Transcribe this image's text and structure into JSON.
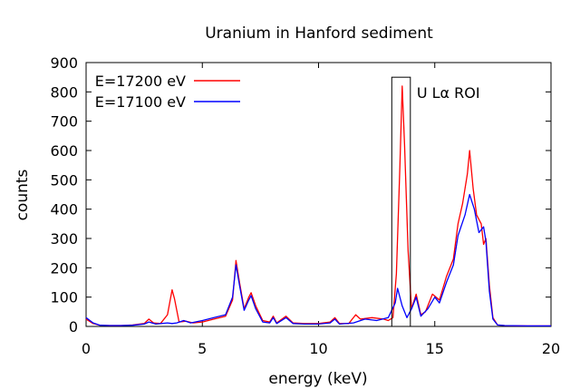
{
  "chart_data": {
    "type": "line",
    "title": "Uranium in Hanford sediment",
    "xlabel": "energy (keV)",
    "ylabel": "counts",
    "xlim": [
      0,
      20
    ],
    "ylim": [
      0,
      900
    ],
    "x_ticks": [
      0,
      5,
      10,
      15,
      20
    ],
    "y_ticks": [
      0,
      100,
      200,
      300,
      400,
      500,
      600,
      700,
      800,
      900
    ],
    "grid": false,
    "legend_position": "top-left",
    "series": [
      {
        "name": "E=17200 eV",
        "color": "#ff0000",
        "points": [
          [
            0.0,
            25
          ],
          [
            0.3,
            10
          ],
          [
            0.6,
            4
          ],
          [
            1.0,
            3
          ],
          [
            1.5,
            3
          ],
          [
            2.0,
            5
          ],
          [
            2.5,
            10
          ],
          [
            2.7,
            25
          ],
          [
            2.9,
            12
          ],
          [
            3.2,
            10
          ],
          [
            3.5,
            40
          ],
          [
            3.7,
            125
          ],
          [
            3.8,
            95
          ],
          [
            4.0,
            15
          ],
          [
            4.3,
            18
          ],
          [
            4.6,
            12
          ],
          [
            5.0,
            15
          ],
          [
            5.5,
            25
          ],
          [
            6.0,
            35
          ],
          [
            6.3,
            90
          ],
          [
            6.45,
            225
          ],
          [
            6.6,
            150
          ],
          [
            6.8,
            60
          ],
          [
            7.0,
            100
          ],
          [
            7.1,
            115
          ],
          [
            7.3,
            70
          ],
          [
            7.6,
            20
          ],
          [
            7.9,
            15
          ],
          [
            8.05,
            35
          ],
          [
            8.2,
            12
          ],
          [
            8.6,
            35
          ],
          [
            8.9,
            12
          ],
          [
            9.4,
            10
          ],
          [
            10.0,
            10
          ],
          [
            10.5,
            15
          ],
          [
            10.7,
            30
          ],
          [
            10.9,
            10
          ],
          [
            11.3,
            10
          ],
          [
            11.6,
            40
          ],
          [
            11.8,
            25
          ],
          [
            12.3,
            30
          ],
          [
            12.8,
            25
          ],
          [
            13.0,
            20
          ],
          [
            13.2,
            30
          ],
          [
            13.35,
            180
          ],
          [
            13.5,
            550
          ],
          [
            13.6,
            820
          ],
          [
            13.7,
            620
          ],
          [
            13.85,
            260
          ],
          [
            14.0,
            60
          ],
          [
            14.2,
            110
          ],
          [
            14.4,
            40
          ],
          [
            14.6,
            50
          ],
          [
            14.9,
            110
          ],
          [
            15.2,
            90
          ],
          [
            15.5,
            170
          ],
          [
            15.8,
            230
          ],
          [
            16.0,
            350
          ],
          [
            16.2,
            420
          ],
          [
            16.4,
            520
          ],
          [
            16.5,
            600
          ],
          [
            16.65,
            470
          ],
          [
            16.8,
            380
          ],
          [
            17.0,
            350
          ],
          [
            17.1,
            280
          ],
          [
            17.2,
            300
          ],
          [
            17.35,
            140
          ],
          [
            17.5,
            30
          ],
          [
            17.7,
            5
          ],
          [
            18.0,
            3
          ],
          [
            19.0,
            2
          ],
          [
            20.0,
            2
          ]
        ]
      },
      {
        "name": "E=17100 eV",
        "color": "#0000ff",
        "points": [
          [
            0.0,
            30
          ],
          [
            0.3,
            12
          ],
          [
            0.6,
            4
          ],
          [
            1.0,
            3
          ],
          [
            1.5,
            3
          ],
          [
            2.0,
            4
          ],
          [
            2.5,
            8
          ],
          [
            2.7,
            15
          ],
          [
            3.0,
            8
          ],
          [
            3.5,
            12
          ],
          [
            3.7,
            10
          ],
          [
            3.9,
            12
          ],
          [
            4.2,
            20
          ],
          [
            4.5,
            12
          ],
          [
            5.0,
            20
          ],
          [
            5.5,
            30
          ],
          [
            6.0,
            40
          ],
          [
            6.3,
            100
          ],
          [
            6.45,
            210
          ],
          [
            6.6,
            140
          ],
          [
            6.8,
            55
          ],
          [
            7.0,
            90
          ],
          [
            7.1,
            105
          ],
          [
            7.3,
            60
          ],
          [
            7.6,
            15
          ],
          [
            7.9,
            12
          ],
          [
            8.05,
            30
          ],
          [
            8.2,
            10
          ],
          [
            8.6,
            30
          ],
          [
            8.9,
            10
          ],
          [
            9.4,
            8
          ],
          [
            10.0,
            8
          ],
          [
            10.5,
            12
          ],
          [
            10.7,
            25
          ],
          [
            10.9,
            8
          ],
          [
            11.5,
            12
          ],
          [
            12.0,
            25
          ],
          [
            12.5,
            20
          ],
          [
            13.0,
            30
          ],
          [
            13.3,
            80
          ],
          [
            13.4,
            130
          ],
          [
            13.6,
            70
          ],
          [
            13.8,
            30
          ],
          [
            14.0,
            60
          ],
          [
            14.2,
            100
          ],
          [
            14.4,
            35
          ],
          [
            14.7,
            60
          ],
          [
            15.0,
            100
          ],
          [
            15.2,
            80
          ],
          [
            15.5,
            150
          ],
          [
            15.8,
            210
          ],
          [
            16.0,
            310
          ],
          [
            16.3,
            380
          ],
          [
            16.5,
            450
          ],
          [
            16.7,
            400
          ],
          [
            16.9,
            320
          ],
          [
            17.1,
            340
          ],
          [
            17.2,
            290
          ],
          [
            17.35,
            120
          ],
          [
            17.5,
            25
          ],
          [
            17.7,
            5
          ],
          [
            18.0,
            3
          ],
          [
            19.0,
            2
          ],
          [
            20.0,
            2
          ]
        ]
      }
    ],
    "annotations": [
      {
        "label": "U Lα ROI",
        "x0": 13.15,
        "x1": 13.95,
        "y0": 0,
        "y1": 850
      }
    ]
  }
}
